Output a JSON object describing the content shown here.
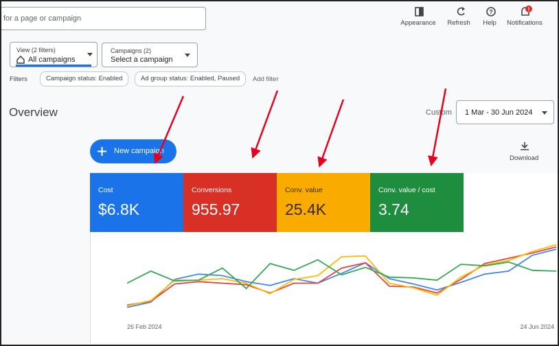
{
  "search": {
    "placeholder": "for a page or campaign"
  },
  "toolbar": [
    "Appearance",
    "Refresh",
    "Help",
    "Notifications"
  ],
  "view_filter": {
    "label": "View (2 filters)",
    "value": "All campaigns"
  },
  "campaign_filter": {
    "label": "Campaigns (2)",
    "value": "Select a campaign"
  },
  "filters": {
    "label": "Filters",
    "chips": [
      "Campaign status: Enabled",
      "Ad group status: Enabled, Paused"
    ],
    "add": "Add filter"
  },
  "overview": {
    "title": "Overview",
    "range_label": "Custom",
    "date_range": "1 Mar - 30 Jun 2024"
  },
  "new_campaign": "New campaign",
  "download": "Download",
  "metrics": [
    {
      "label": "Cost",
      "value": "$6.8K",
      "color": "#1a73e8"
    },
    {
      "label": "Conversions",
      "value": "955.97",
      "color": "#d93025"
    },
    {
      "label": "Conv. value",
      "value": "25.4K",
      "color": "#f9ab00"
    },
    {
      "label": "Conv. value / cost",
      "value": "3.74",
      "color": "#1e8e3e"
    }
  ],
  "chart_data": {
    "type": "line",
    "x_labels": [
      "26 Feb 2024",
      "24 Jun 2024"
    ],
    "ylim": [
      0,
      100
    ],
    "series": [
      {
        "color": "#4285f4",
        "values": [
          13,
          20,
          50,
          57,
          55,
          47,
          42,
          51,
          45,
          58,
          72,
          51,
          44,
          36,
          46,
          57,
          61,
          82,
          90
        ]
      },
      {
        "color": "#ea4335",
        "values": [
          16,
          21,
          44,
          47,
          45,
          43,
          32,
          45,
          45,
          65,
          72,
          41,
          40,
          32,
          50,
          71,
          78,
          85,
          93
        ]
      },
      {
        "color": "#fbbc04",
        "values": [
          15,
          22,
          49,
          49,
          51,
          45,
          31,
          50,
          55,
          80,
          81,
          45,
          39,
          29,
          53,
          69,
          75,
          87,
          96
        ]
      },
      {
        "color": "#34a853",
        "values": [
          45,
          61,
          48,
          49,
          65,
          38,
          71,
          62,
          76,
          56,
          66,
          53,
          52,
          49,
          70,
          68,
          73,
          62,
          61
        ]
      }
    ]
  }
}
